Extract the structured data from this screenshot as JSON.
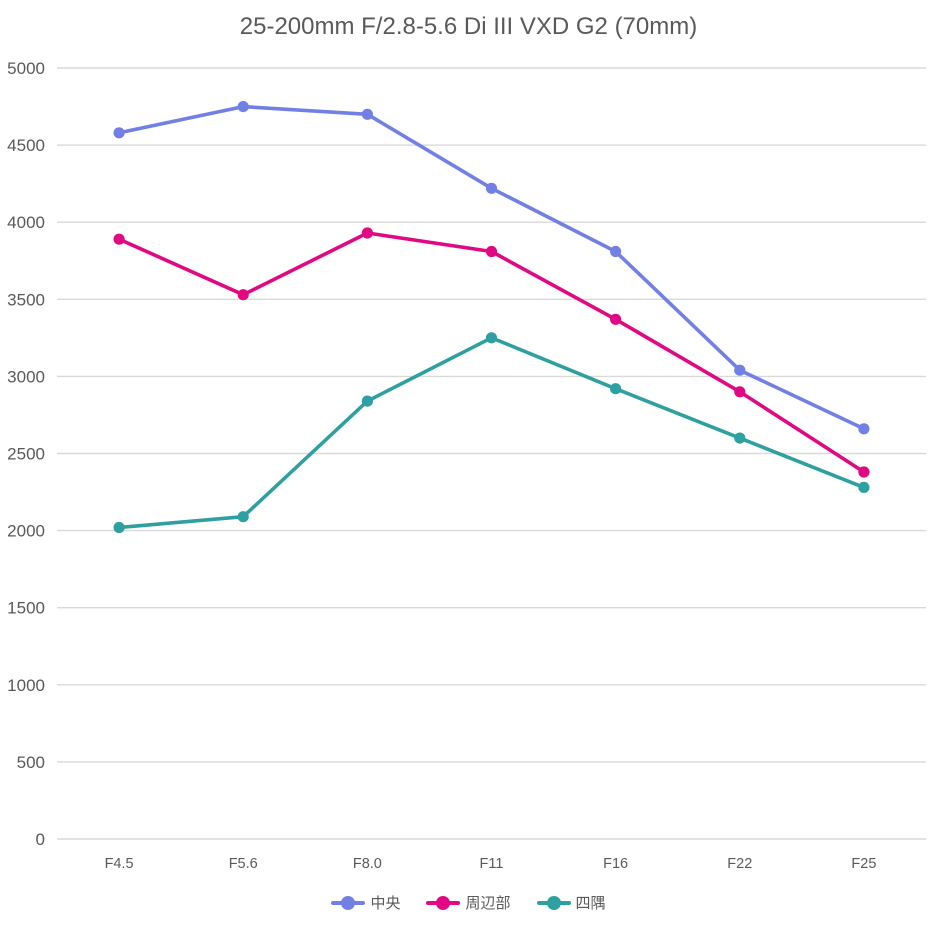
{
  "chart_data": {
    "type": "line",
    "title": "25-200mm F/2.8-5.6 Di III VXD G2 (70mm)",
    "categories": [
      "F4.5",
      "F5.6",
      "F8.0",
      "F11",
      "F16",
      "F22",
      "F25"
    ],
    "series": [
      {
        "name": "中央",
        "color": "#7280E6",
        "values": [
          4580,
          4750,
          4700,
          4220,
          3810,
          3040,
          2660
        ]
      },
      {
        "name": "周辺部",
        "color": "#E10983",
        "values": [
          3890,
          3530,
          3930,
          3810,
          3370,
          2900,
          2380
        ]
      },
      {
        "name": "四隅",
        "color": "#2FA0A1",
        "values": [
          2020,
          2090,
          2840,
          3250,
          2920,
          2600,
          2280
        ]
      }
    ],
    "ylim": [
      0,
      5000
    ],
    "yticks": [
      0,
      500,
      1000,
      1500,
      2000,
      2500,
      3000,
      3500,
      4000,
      4500,
      5000
    ],
    "xlabel": "",
    "ylabel": "",
    "grid": "horizontal",
    "legend_position": "bottom",
    "marker": "circle",
    "text_color": "#595959",
    "gridline_color": "#D9D9D9",
    "background": "#FFFFFF"
  }
}
